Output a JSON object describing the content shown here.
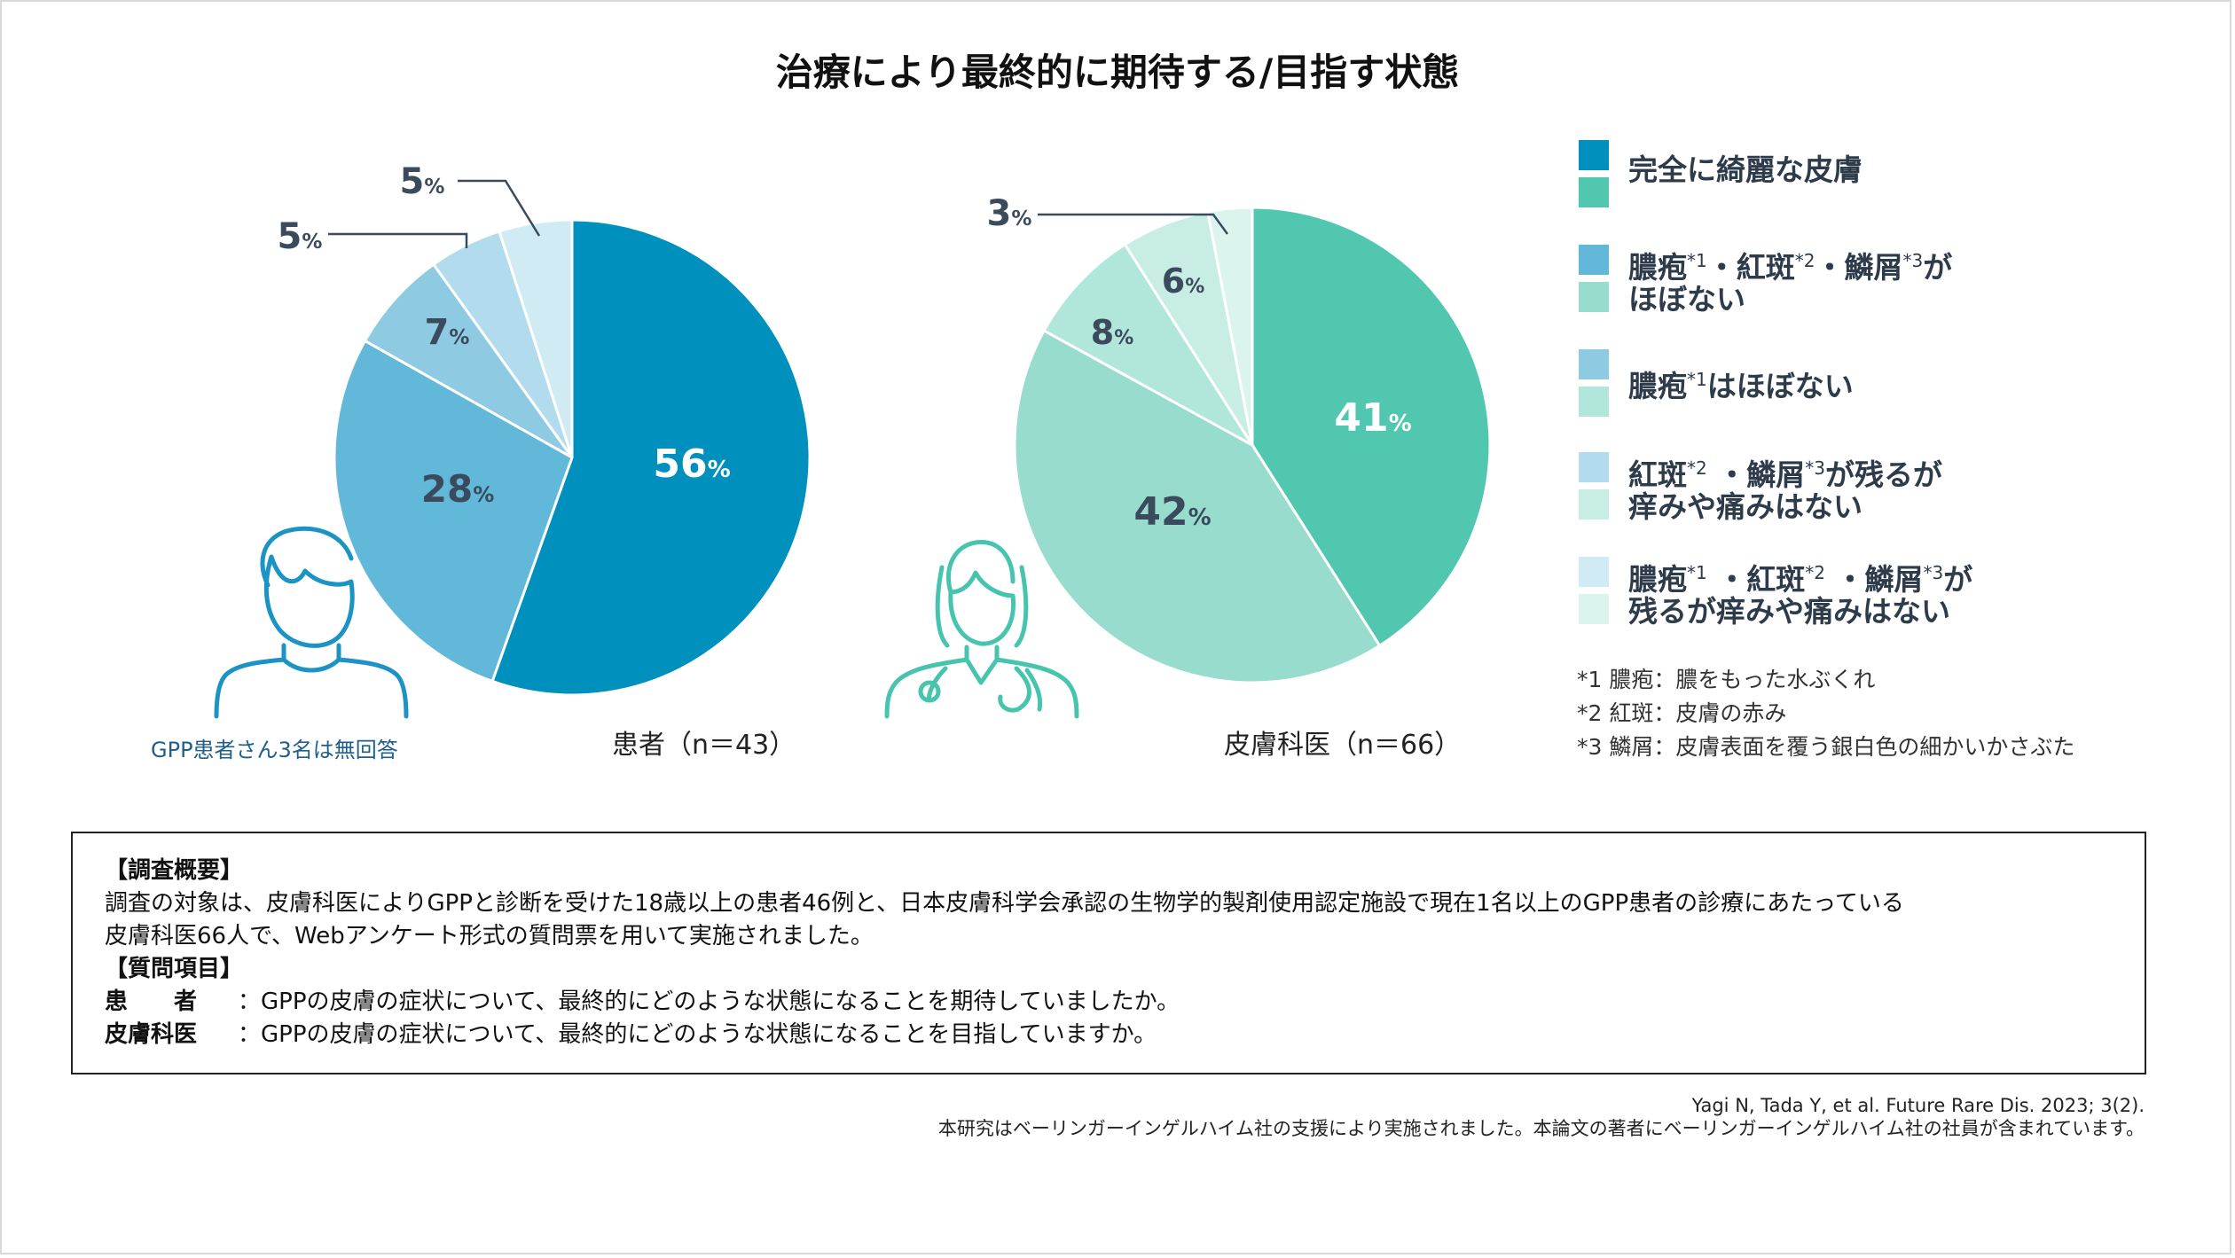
{
  "title": "治療により最終的に期待する/目指す状態",
  "legend": [
    {
      "key": "leg-1",
      "text": "完全に綺麗な皮膚",
      "lines": [
        "完全に綺麗な皮膚"
      ],
      "colors": [
        "#0090bd",
        "#52c7b0"
      ]
    },
    {
      "key": "leg-2",
      "text": "膿疱*1・紅斑*2・鱗屑*3がほぼない",
      "lines": [
        "膿疱*1・紅斑*2・鱗屑*3が",
        "ほぼない"
      ],
      "colors": [
        "#62b8d8",
        "#98dccd"
      ]
    },
    {
      "key": "leg-3",
      "text": "膿疱*1はほぼない",
      "lines": [
        "膿疱*1はほぼない"
      ],
      "colors": [
        "#8ecbe3",
        "#b1e6da"
      ]
    },
    {
      "key": "leg-4",
      "text": "紅斑*2 ・鱗屑*3が残るが痒みや痛みはない",
      "lines": [
        "紅斑*2 ・鱗屑*3が残るが",
        "痒みや痛みはない"
      ],
      "colors": [
        "#b2dced",
        "#c7ede4"
      ]
    },
    {
      "key": "leg-5",
      "text": "膿疱*1 ・紅斑*2 ・鱗屑*3が残るが痒みや痛みはない",
      "lines": [
        "膿疱*1 ・紅斑*2 ・鱗屑*3が",
        "残るが痒みや痛みはない"
      ],
      "colors": [
        "#d1ebf5",
        "#dcf4ee"
      ]
    }
  ],
  "footnotes": [
    "*1  膿疱：膿をもった水ぶくれ",
    "*2  紅斑：皮膚の赤み",
    "*3  鱗屑：皮膚表面を覆う銀白色の細かいかさぶた"
  ],
  "patient_caption": "患者（n＝43）",
  "derm_caption": "皮膚科医（n＝66）",
  "patient_note": "GPP患者さん3名は無回答",
  "survey": {
    "overview_header": "【調査概要】",
    "overview_line1": "調査の対象は、皮膚科医によりGPPと診断を受けた18歳以上の患者46例と、日本皮膚科学会承認の生物学的製剤使用認定施設で現在1名以上のGPP患者の診療にあたっている",
    "overview_line2": "皮膚科医66人で、Webアンケート形式の質問票を用いて実施されました。",
    "questions_header": "【質問項目】",
    "q_patient_label": "患　　者",
    "q_patient_text": "：GPPの皮膚の症状について、最終的にどのような状態になることを期待していましたか。",
    "q_derm_label": "皮膚科医",
    "q_derm_text": "：GPPの皮膚の症状について、最終的にどのような状態になることを目指していますか。"
  },
  "citation_line1": "Yagi N, Tada Y, et al. Future Rare Dis. 2023; 3(2).",
  "citation_line2": "本研究はベーリンガーインゲルハイム社の支援により実施されました。本論文の著者にベーリンガーインゲルハイム社の社員が含まれています。",
  "chart_data": [
    {
      "type": "pie",
      "title": "患者（n＝43）",
      "categories": [
        "完全に綺麗な皮膚",
        "膿疱*1・紅斑*2・鱗屑*3がほぼない",
        "膿疱*1はほぼない",
        "紅斑*2 ・鱗屑*3が残るが痒みや痛みはない",
        "膿疱*1 ・紅斑*2 ・鱗屑*3が残るが痒みや痛みはない"
      ],
      "values": [
        56,
        28,
        7,
        5,
        5
      ],
      "labels": [
        "56%",
        "28%",
        "7%",
        "5%",
        "5%"
      ],
      "colors": [
        "#0090bd",
        "#62b8d8",
        "#8ecbe3",
        "#b2dced",
        "#d1ebf5"
      ]
    },
    {
      "type": "pie",
      "title": "皮膚科医（n＝66）",
      "categories": [
        "完全に綺麗な皮膚",
        "膿疱*1・紅斑*2・鱗屑*3がほぼない",
        "膿疱*1はほぼない",
        "紅斑*2 ・鱗屑*3が残るが痒みや痛みはない",
        "膿疱*1 ・紅斑*2 ・鱗屑*3が残るが痒みや痛みはない"
      ],
      "values": [
        41,
        42,
        8,
        6,
        3
      ],
      "labels": [
        "41%",
        "42%",
        "8%",
        "6%",
        "3%"
      ],
      "colors": [
        "#52c7b0",
        "#98dccd",
        "#b1e6da",
        "#c7ede4",
        "#dcf4ee"
      ]
    }
  ]
}
